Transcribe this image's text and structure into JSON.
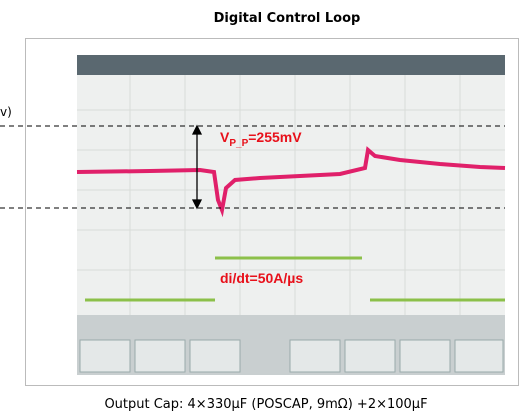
{
  "header": {
    "title": "Digital Control Loop"
  },
  "annotations": {
    "left_label": "v)",
    "vpp": {
      "symbol": "V",
      "subscript": "P_P",
      "value": "=255mV"
    },
    "didt": "di/dt=50A/µs"
  },
  "caption": "Output Cap: 4×330µF (POSCAP, 9mΩ) +2×100µF"
}
